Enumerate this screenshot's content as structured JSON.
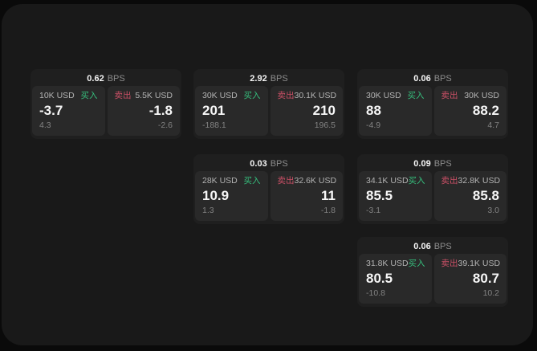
{
  "labels": {
    "bps_unit": "BPS",
    "buy": "买入",
    "sell": "卖出"
  },
  "colors": {
    "buy_accent": "#36bf7d",
    "sell_accent": "#cb5066",
    "surface": "#191919",
    "card": "#1f1f1f",
    "tile": "#292929"
  },
  "cards": [
    {
      "bps": "0.62",
      "buy": {
        "amount": "10K USD",
        "price": "-3.7",
        "delta": "4.3"
      },
      "sell": {
        "amount": "5.5K USD",
        "price": "-1.8",
        "delta": "-2.6"
      }
    },
    {
      "bps": "2.92",
      "buy": {
        "amount": "30K USD",
        "price": "201",
        "delta": "-188.1"
      },
      "sell": {
        "amount": "30.1K USD",
        "price": "210",
        "delta": "196.5"
      }
    },
    {
      "bps": "0.06",
      "buy": {
        "amount": "30K USD",
        "price": "88",
        "delta": "-4.9"
      },
      "sell": {
        "amount": "30K USD",
        "price": "88.2",
        "delta": "4.7"
      }
    },
    {
      "bps": "0.03",
      "buy": {
        "amount": "28K USD",
        "price": "10.9",
        "delta": "1.3"
      },
      "sell": {
        "amount": "32.6K USD",
        "price": "11",
        "delta": "-1.8"
      }
    },
    {
      "bps": "0.09",
      "buy": {
        "amount": "34.1K USD",
        "price": "85.5",
        "delta": "-3.1"
      },
      "sell": {
        "amount": "32.8K USD",
        "price": "85.8",
        "delta": "3.0"
      }
    },
    {
      "bps": "0.06",
      "buy": {
        "amount": "31.8K USD",
        "price": "80.5",
        "delta": "-10.8"
      },
      "sell": {
        "amount": "39.1K USD",
        "price": "80.7",
        "delta": "10.2"
      }
    }
  ]
}
